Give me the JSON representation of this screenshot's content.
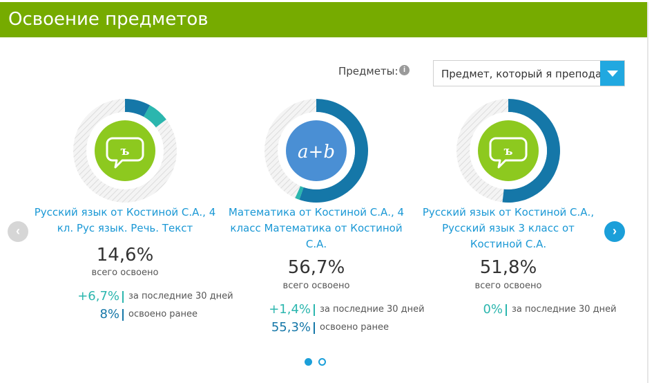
{
  "header": {
    "title": "Освоение предметов"
  },
  "filter": {
    "label": "Предметы:",
    "info_icon": "info-icon",
    "select_value": "Предмет, который я преподаю",
    "arrow_icon": "chevron-down-icon"
  },
  "colors": {
    "brand_green": "#76ab00",
    "accent_blue": "#1b9fd9",
    "progress_blue": "#1577a8",
    "progress_teal": "#2bb6ae",
    "icon_green": "#8dc91f",
    "icon_blue": "#4a8fd4"
  },
  "subjects": [
    {
      "icon": "speech-bubble-icon",
      "icon_glyph": "ъ",
      "title": "Русский язык от Костиной С.А., 4 кл. Рус язык. Речь. Текст",
      "total_percent": "14,6%",
      "total_label": "всего освоено",
      "mastered_earlier_fraction": 0.08,
      "recent_fraction": 0.067,
      "stats": [
        {
          "value": "+6,7%",
          "label": "за последние 30 дней"
        },
        {
          "value": "8%",
          "label": "освоено ранее"
        }
      ]
    },
    {
      "icon": "formula-icon",
      "icon_glyph": "a+b",
      "title": "Математика от Костиной С.А., 4 класс Математика от Костиной С.А.",
      "total_percent": "56,7%",
      "total_label": "всего освоено",
      "mastered_earlier_fraction": 0.553,
      "recent_fraction": 0.014,
      "stats": [
        {
          "value": "+1,4%",
          "label": "за последние 30 дней"
        },
        {
          "value": "55,3%",
          "label": "освоено ранее"
        }
      ]
    },
    {
      "icon": "speech-bubble-icon",
      "icon_glyph": "ъ",
      "title": "Русский язык от Костиной С.А., Русский язык 3 класс от Костиной С.А.",
      "total_percent": "51,8%",
      "total_label": "всего освоено",
      "mastered_earlier_fraction": 0.518,
      "recent_fraction": 0,
      "stats": [
        {
          "value": "0%",
          "label": "за последние 30 дней"
        }
      ]
    }
  ],
  "carousel": {
    "prev_icon": "chevron-left-icon",
    "next_icon": "chevron-right-icon",
    "pages": 2,
    "active_page": 1
  }
}
